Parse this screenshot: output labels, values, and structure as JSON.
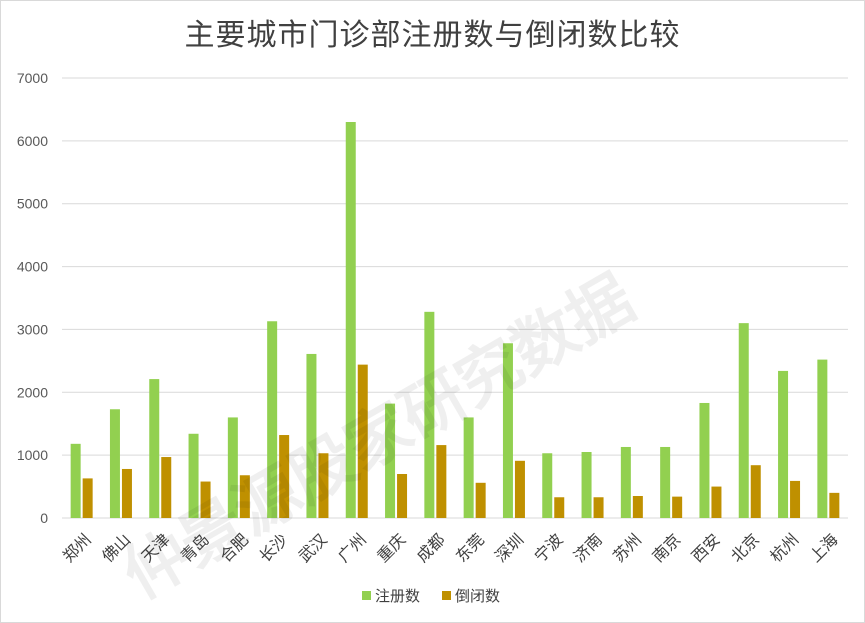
{
  "chart_data": {
    "type": "bar",
    "title": "主要城市门诊部注册数与倒闭数比较",
    "xlabel": "",
    "ylabel": "",
    "ylim": [
      0,
      7000
    ],
    "yticks": [
      0,
      1000,
      2000,
      3000,
      4000,
      5000,
      6000,
      7000
    ],
    "grid": true,
    "legend_position": "bottom",
    "categories": [
      "郑州",
      "佛山",
      "天津",
      "青岛",
      "合肥",
      "长沙",
      "武汉",
      "广州",
      "重庆",
      "成都",
      "东莞",
      "深圳",
      "宁波",
      "济南",
      "苏州",
      "南京",
      "西安",
      "北京",
      "杭州",
      "上海"
    ],
    "series": [
      {
        "name": "注册数",
        "color": "#92d050",
        "values": [
          1180,
          1730,
          2210,
          1340,
          1600,
          3130,
          2610,
          6300,
          1820,
          3280,
          1600,
          2780,
          1030,
          1050,
          1130,
          1130,
          1830,
          3100,
          2340,
          2520
        ]
      },
      {
        "name": "倒闭数",
        "color": "#bf9000",
        "values": [
          630,
          780,
          970,
          580,
          680,
          1320,
          1030,
          2440,
          700,
          1160,
          560,
          910,
          330,
          330,
          350,
          340,
          500,
          840,
          590,
          400
        ]
      }
    ]
  },
  "watermark": "仲景源股家研究数据"
}
